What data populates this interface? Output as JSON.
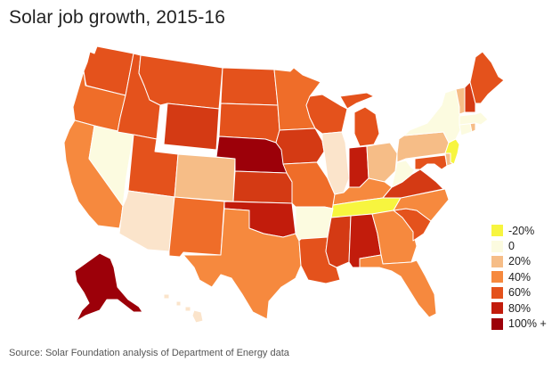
{
  "title": "Solar job growth, 2015-16",
  "source": "Source: Solar Foundation analysis of Department of Energy data",
  "legend": [
    {
      "label": "-20%",
      "color": "#f7f53f"
    },
    {
      "label": "0",
      "color": "#fcfbe0"
    },
    {
      "label": "20%",
      "color": "#f6bd87"
    },
    {
      "label": "40%",
      "color": "#f6893e"
    },
    {
      "label": "60%",
      "color": "#e4521c"
    },
    {
      "label": "80%",
      "color": "#c21c0c"
    },
    {
      "label": "100% +",
      "color": "#9c0009"
    }
  ],
  "colors": {
    "minus20": "#f7f53f",
    "zero": "#fcfbe0",
    "p10": "#fbe4cb",
    "p20": "#f6bd87",
    "p30": "#f6a15a",
    "p40": "#f6893e",
    "p50": "#ef6d29",
    "p60": "#e4521c",
    "p70": "#d43a14",
    "p80": "#c21c0c",
    "p100": "#9c0009"
  }
}
